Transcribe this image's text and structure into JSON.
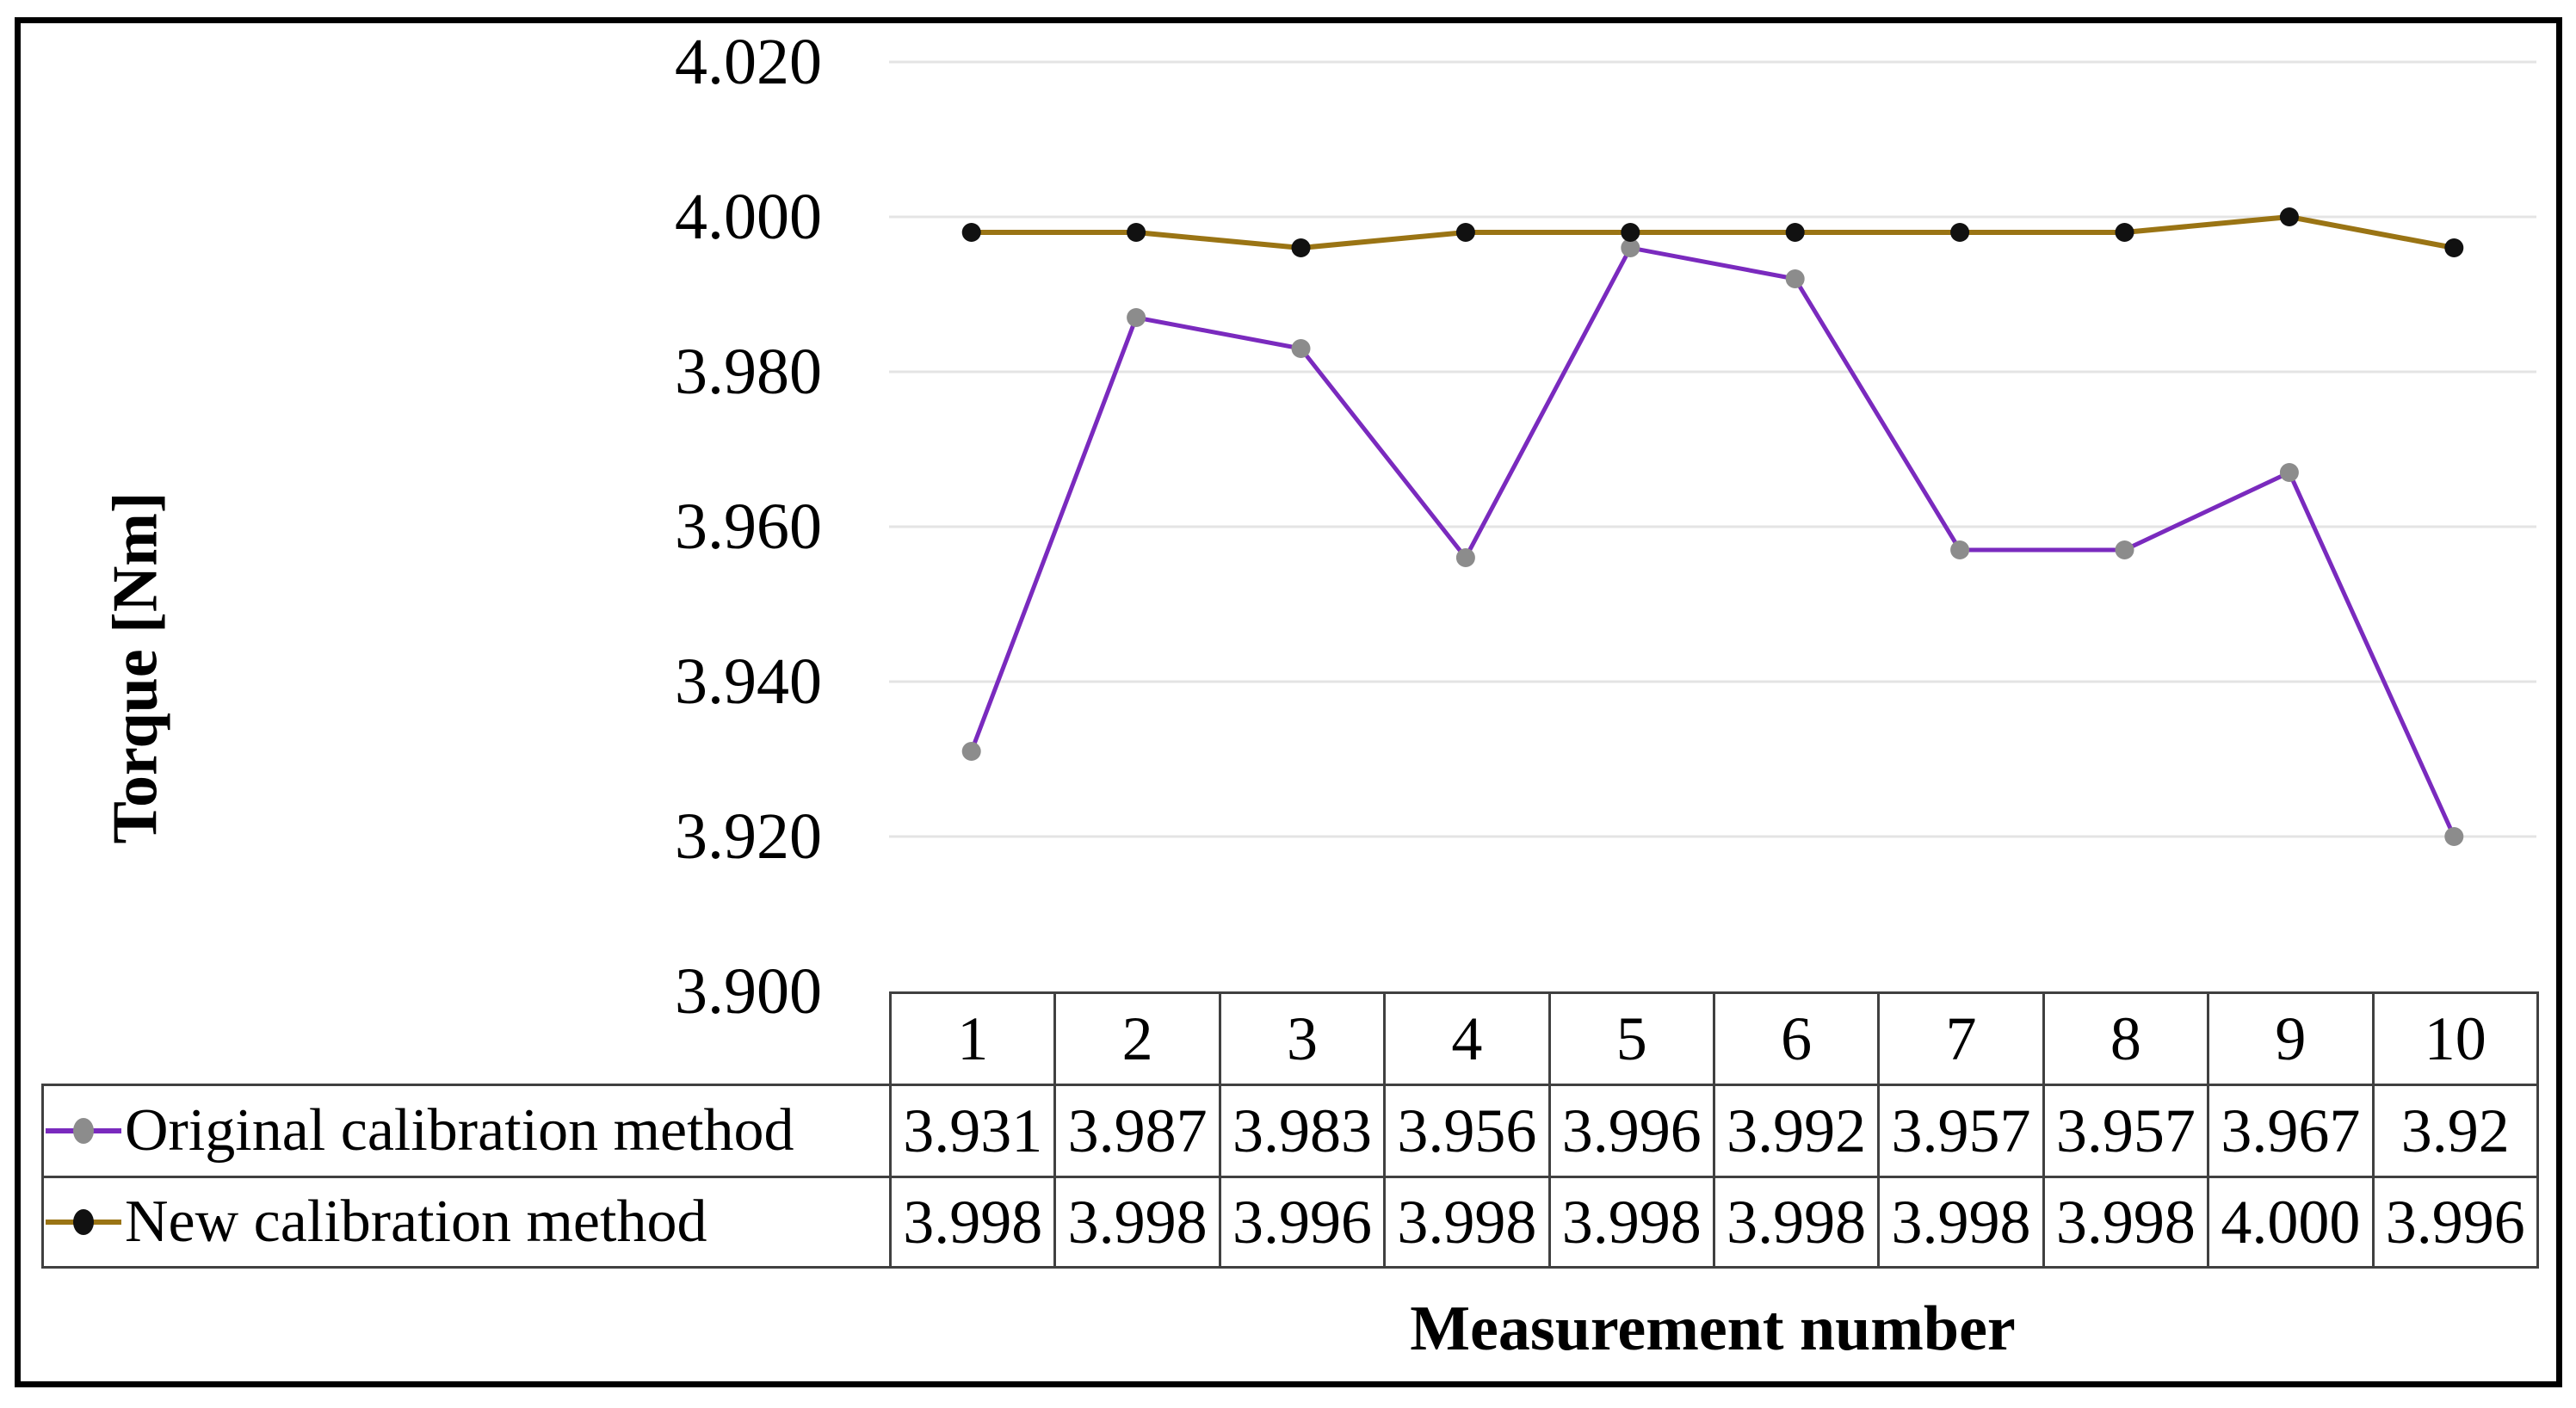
{
  "figure": {
    "y_axis_title": "Torque [Nm]",
    "x_axis_title": "Measurement number"
  },
  "chart_data": {
    "type": "line",
    "title": "",
    "xlabel": "Measurement number",
    "ylabel": "Torque [Nm]",
    "categories": [
      "1",
      "2",
      "3",
      "4",
      "5",
      "6",
      "7",
      "8",
      "9",
      "10"
    ],
    "y_ticks": [
      "4.020",
      "4.000",
      "3.980",
      "3.960",
      "3.940",
      "3.920",
      "3.900"
    ],
    "ylim": [
      3.9,
      4.02
    ],
    "grid": true,
    "legend_position": "left column of data table below plot",
    "series": [
      {
        "name": "Original calibration method",
        "line_color": "#7A2ABE",
        "marker_color": "#8C8C8C",
        "values": [
          "3.931",
          "3.987",
          "3.983",
          "3.956",
          "3.996",
          "3.992",
          "3.957",
          "3.957",
          "3.967",
          "3.92"
        ]
      },
      {
        "name": "New calibration method",
        "line_color": "#9A7414",
        "marker_color": "#111111",
        "values": [
          "3.998",
          "3.998",
          "3.996",
          "3.998",
          "3.998",
          "3.998",
          "3.998",
          "3.998",
          "4.000",
          "3.996"
        ]
      }
    ]
  },
  "colors": {
    "background": "#FFFFFF",
    "figure_border": "#000000",
    "gridline": "#E4E4E4",
    "table_border": "#404040",
    "text": "#000000"
  }
}
